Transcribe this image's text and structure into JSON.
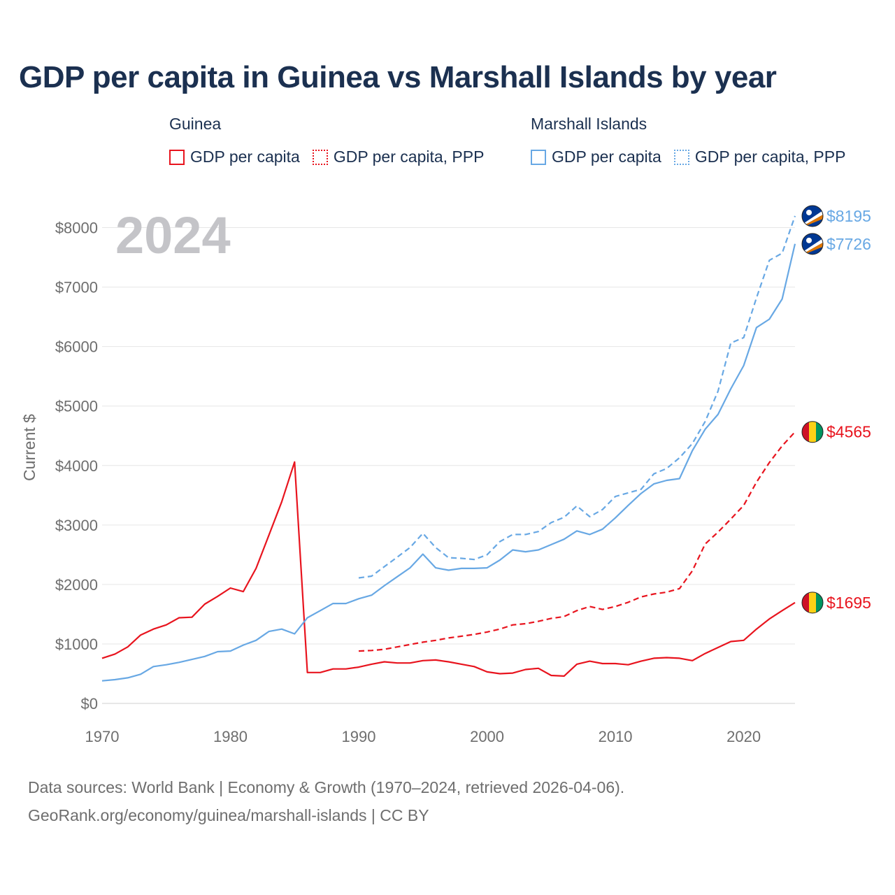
{
  "chart_data": {
    "type": "line",
    "title": "GDP per capita in Guinea vs Marshall Islands by year",
    "year_label": "2024",
    "ylabel": "Current $",
    "xlim": [
      1970,
      2024
    ],
    "ylim": [
      0,
      8500
    ],
    "x_ticks": [
      "1970",
      "1980",
      "1990",
      "2000",
      "2010",
      "2020"
    ],
    "x_tick_values": [
      1970,
      1980,
      1990,
      2000,
      2010,
      2020
    ],
    "y_ticks": [
      "$0",
      "$1000",
      "$2000",
      "$3000",
      "$4000",
      "$5000",
      "$6000",
      "$7000",
      "$8000"
    ],
    "y_tick_values": [
      0,
      1000,
      2000,
      3000,
      4000,
      5000,
      6000,
      7000,
      8000
    ],
    "legend": {
      "guinea": {
        "group": "Guinea",
        "solid": "GDP per capita",
        "dashed": "GDP per capita, PPP"
      },
      "marshall": {
        "group": "Marshall Islands",
        "solid": "GDP per capita",
        "dashed": "GDP per capita, PPP"
      }
    },
    "series": [
      {
        "name": "Guinea GDP per capita",
        "country": "Guinea",
        "style": "solid",
        "color": "#e8141e",
        "x": [
          1970,
          1971,
          1972,
          1973,
          1974,
          1975,
          1976,
          1977,
          1978,
          1979,
          1980,
          1981,
          1982,
          1983,
          1984,
          1985,
          1986,
          1987,
          1988,
          1989,
          1990,
          1991,
          1992,
          1993,
          1994,
          1995,
          1996,
          1997,
          1998,
          1999,
          2000,
          2001,
          2002,
          2003,
          2004,
          2005,
          2006,
          2007,
          2008,
          2009,
          2010,
          2011,
          2012,
          2013,
          2014,
          2015,
          2016,
          2017,
          2018,
          2019,
          2020,
          2021,
          2022,
          2023,
          2024
        ],
        "values": [
          760,
          830,
          950,
          1150,
          1250,
          1320,
          1440,
          1450,
          1670,
          1800,
          1940,
          1880,
          2270,
          2830,
          3390,
          4060,
          520,
          520,
          580,
          580,
          610,
          660,
          700,
          680,
          680,
          720,
          730,
          700,
          660,
          620,
          530,
          500,
          510,
          570,
          590,
          470,
          460,
          660,
          710,
          670,
          670,
          650,
          710,
          760,
          770,
          760,
          720,
          840,
          940,
          1040,
          1060,
          1250,
          1420,
          1560,
          1695
        ],
        "end_label": "$1695"
      },
      {
        "name": "Guinea GDP per capita, PPP",
        "country": "Guinea",
        "style": "dashed",
        "color": "#e8141e",
        "x": [
          1990,
          1991,
          1992,
          1993,
          1994,
          1995,
          1996,
          1997,
          1998,
          1999,
          2000,
          2001,
          2002,
          2003,
          2004,
          2005,
          2006,
          2007,
          2008,
          2009,
          2010,
          2011,
          2012,
          2013,
          2014,
          2015,
          2016,
          2017,
          2018,
          2019,
          2020,
          2021,
          2022,
          2023,
          2024
        ],
        "values": [
          880,
          890,
          910,
          950,
          990,
          1030,
          1060,
          1100,
          1130,
          1160,
          1200,
          1250,
          1320,
          1340,
          1380,
          1430,
          1460,
          1560,
          1630,
          1580,
          1630,
          1700,
          1790,
          1840,
          1870,
          1930,
          2230,
          2680,
          2880,
          3100,
          3330,
          3720,
          4050,
          4330,
          4565
        ],
        "end_label": "$4565"
      },
      {
        "name": "Marshall Islands GDP per capita",
        "country": "Marshall Islands",
        "style": "solid",
        "color": "#68a8e4",
        "x": [
          1970,
          1971,
          1972,
          1973,
          1974,
          1975,
          1976,
          1977,
          1978,
          1979,
          1980,
          1981,
          1982,
          1983,
          1984,
          1985,
          1986,
          1987,
          1988,
          1989,
          1990,
          1991,
          1992,
          1993,
          1994,
          1995,
          1996,
          1997,
          1998,
          1999,
          2000,
          2001,
          2002,
          2003,
          2004,
          2005,
          2006,
          2007,
          2008,
          2009,
          2010,
          2011,
          2012,
          2013,
          2014,
          2015,
          2016,
          2017,
          2018,
          2019,
          2020,
          2021,
          2022,
          2023,
          2024
        ],
        "values": [
          380,
          400,
          430,
          490,
          620,
          650,
          690,
          740,
          790,
          870,
          880,
          980,
          1060,
          1210,
          1250,
          1170,
          1440,
          1560,
          1680,
          1680,
          1760,
          1820,
          1980,
          2130,
          2280,
          2510,
          2280,
          2240,
          2270,
          2270,
          2280,
          2410,
          2580,
          2550,
          2580,
          2670,
          2760,
          2900,
          2840,
          2930,
          3120,
          3330,
          3530,
          3690,
          3750,
          3780,
          4250,
          4610,
          4860,
          5290,
          5680,
          6320,
          6460,
          6800,
          7726
        ],
        "end_label": "$7726"
      },
      {
        "name": "Marshall Islands GDP per capita, PPP",
        "country": "Marshall Islands",
        "style": "dashed",
        "color": "#68a8e4",
        "x": [
          1990,
          1991,
          1992,
          1993,
          1994,
          1995,
          1996,
          1997,
          1998,
          1999,
          2000,
          2001,
          2002,
          2003,
          2004,
          2005,
          2006,
          2007,
          2008,
          2009,
          2010,
          2011,
          2012,
          2013,
          2014,
          2015,
          2016,
          2017,
          2018,
          2019,
          2020,
          2021,
          2022,
          2023,
          2024
        ],
        "values": [
          2110,
          2140,
          2300,
          2460,
          2620,
          2860,
          2620,
          2450,
          2440,
          2420,
          2500,
          2720,
          2840,
          2840,
          2890,
          3040,
          3130,
          3320,
          3140,
          3260,
          3480,
          3540,
          3600,
          3860,
          3950,
          4130,
          4370,
          4740,
          5250,
          6060,
          6150,
          6820,
          7450,
          7570,
          8195
        ],
        "end_label": "$8195"
      }
    ]
  },
  "footer": {
    "line1": "Data sources: World Bank | Economy & Growth (1970–2024, retrieved 2026-04-06).",
    "line2": "GeoRank.org/economy/guinea/marshall-islands | CC BY"
  }
}
